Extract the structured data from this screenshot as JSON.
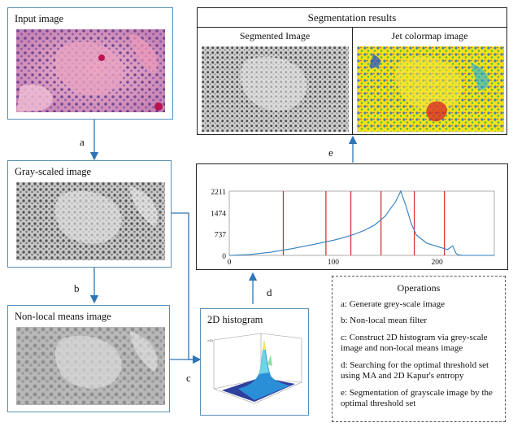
{
  "input_box": {
    "title": "Input image"
  },
  "gray_box": {
    "title": "Gray-scaled image"
  },
  "nlm_box": {
    "title": "Non-local means image"
  },
  "hist2d_box": {
    "title": "2D histogram"
  },
  "segmentation": {
    "title": "Segmentation results",
    "left_label": "Segmented Image",
    "right_label": "Jet colormap image"
  },
  "steps": {
    "a": "a",
    "b": "b",
    "c": "c",
    "d": "d",
    "e": "e"
  },
  "operations": {
    "title": "Operations",
    "items": [
      "a: Generate grey-scale image",
      "b: Non-local mean filter",
      "c: Construct 2D histogram via grey-scale image and non-local means image",
      "d: Searching for the optimal threshold set using MA and 2D Kapur's entropy",
      "e: Segmentation of grayscale image by the optimal threshold set"
    ]
  },
  "chart_data": {
    "type": "line",
    "title": "",
    "xlabel": "",
    "ylabel": "",
    "xlim": [
      0,
      255
    ],
    "ylim": [
      0,
      2211
    ],
    "yticks": [
      "2211",
      "1474",
      "737",
      "0"
    ],
    "xticks": [
      "0",
      "100",
      "200"
    ],
    "thresholds": [
      52,
      93,
      117,
      146,
      178,
      207
    ],
    "series": [
      {
        "x": [
          0,
          20,
          40,
          60,
          80,
          100,
          110,
          120,
          130,
          140,
          150,
          160,
          165,
          170,
          175,
          180,
          190,
          200,
          210,
          215,
          218,
          220,
          225,
          255
        ],
        "values": [
          0,
          30,
          110,
          230,
          370,
          520,
          610,
          720,
          860,
          1050,
          1350,
          1850,
          2211,
          1700,
          1100,
          700,
          420,
          310,
          200,
          330,
          80,
          20,
          0,
          0
        ]
      }
    ],
    "color": "#2f7fc1",
    "threshold_color": "#d62728"
  }
}
